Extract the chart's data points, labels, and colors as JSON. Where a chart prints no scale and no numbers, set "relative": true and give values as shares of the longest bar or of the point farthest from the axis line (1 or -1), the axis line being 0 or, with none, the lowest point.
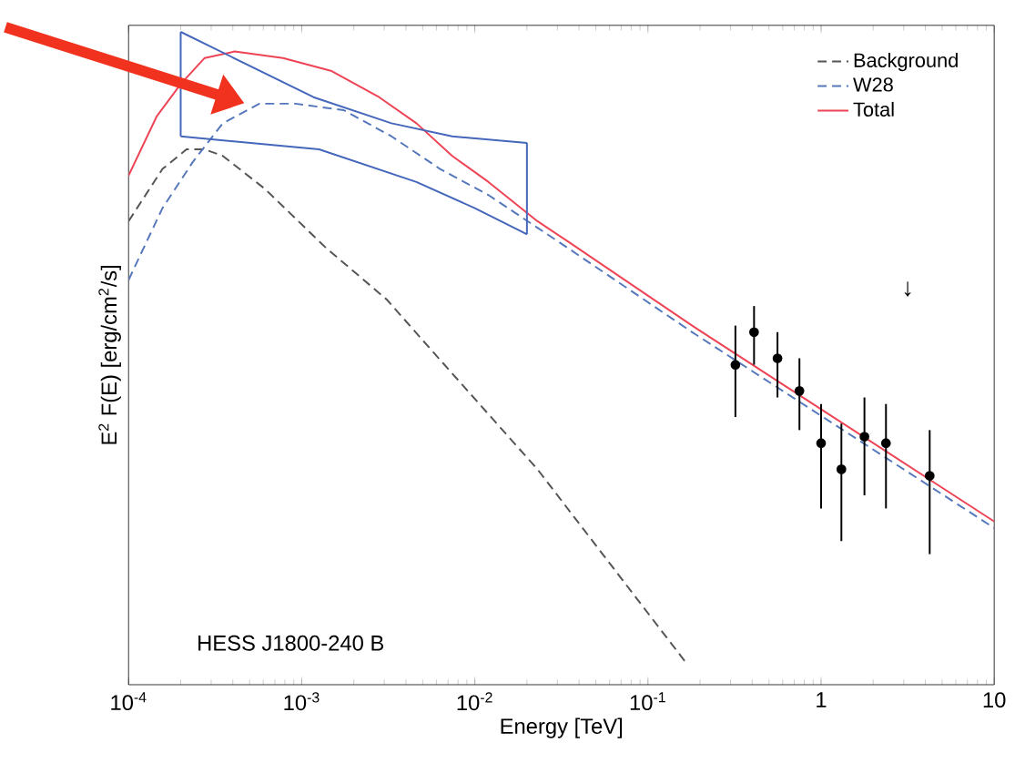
{
  "chart_data": {
    "type": "line",
    "xlabel": "Energy [TeV]",
    "ylabel": "E$^{2}$ F(E) [erg/cm$^{2}$/s]",
    "relative": true,
    "log": "x",
    "xlim": [
      0.0001,
      10
    ],
    "xticks": [
      {
        "value": 0.0001,
        "label": "10$^{-4}$"
      },
      {
        "value": 0.001,
        "label": "10$^{-3}$"
      },
      {
        "value": 0.01,
        "label": "10$^{-2}$"
      },
      {
        "value": 0.1,
        "label": "10$^{-1}$"
      },
      1,
      10
    ],
    "tick_labels": "x",
    "grid": false,
    "legend": "top right",
    "series": [
      {
        "name": "Background",
        "color": "#555555",
        "line_style": "dashed",
        "marker": "none",
        "x": [
          0.0001,
          0.000157,
          0.000216,
          0.000275,
          0.00035,
          0.00061,
          0.00137,
          0.0031,
          0.0053,
          0.023,
          0.17
        ],
        "values": [
          0.71,
          0.79,
          0.82,
          0.82,
          0.81,
          0.76,
          0.67,
          0.59,
          0.52,
          0.33,
          0.03
        ]
      },
      {
        "name": "W28",
        "color": "#5577bb",
        "line_style": "dashed",
        "marker": "none",
        "x": [
          0.0001,
          0.000157,
          0.000234,
          0.00035,
          0.00057,
          0.00092,
          0.00175,
          0.0033,
          0.0063,
          0.012,
          0.023,
          0.034,
          0.18,
          10
        ],
        "values": [
          0.62,
          0.73,
          0.8,
          0.86,
          0.89,
          0.89,
          0.88,
          0.84,
          0.79,
          0.75,
          0.7,
          0.67,
          0.54,
          0.24
        ]
      },
      {
        "name": "Total",
        "color": "#ee4455",
        "line_style": "solid",
        "marker": "none",
        "x": [
          0.0001,
          0.000145,
          0.0002,
          0.000275,
          0.00041,
          0.00078,
          0.00149,
          0.0028,
          0.0046,
          0.0074,
          0.012,
          0.023,
          0.034,
          0.18,
          10
        ],
        "values": [
          0.78,
          0.87,
          0.92,
          0.96,
          0.97,
          0.96,
          0.94,
          0.9,
          0.86,
          0.81,
          0.77,
          0.71,
          0.68,
          0.55,
          0.25
        ]
      },
      {
        "color": "#4466bb",
        "line_style": "solid",
        "marker": "none",
        "x": [
          0.0002,
          0.00117,
          0.0033,
          0.0074,
          0.02
        ],
        "values": [
          1.0,
          0.9,
          0.86,
          0.84,
          0.83
        ]
      },
      {
        "color": "#4466bb",
        "line_style": "solid",
        "marker": "none",
        "x": [
          0.0002,
          0.0002
        ],
        "values": [
          0.84,
          1.0
        ]
      },
      {
        "color": "#4466bb",
        "line_style": "solid",
        "marker": "none",
        "x": [
          0.02,
          0.02
        ],
        "values": [
          0.69,
          0.83
        ]
      },
      {
        "color": "#4466bb",
        "line_style": "solid",
        "marker": "none",
        "x": [
          0.0002,
          0.00126,
          0.0046,
          0.01,
          0.02
        ],
        "values": [
          0.84,
          0.82,
          0.77,
          0.73,
          0.69
        ]
      },
      {
        "type": "scatter",
        "color": "#000000",
        "marker": "circle",
        "x": [
          0.32,
          0.41,
          0.56,
          0.75,
          1.0,
          1.31,
          1.78,
          2.37,
          4.24
        ],
        "values": [
          0.49,
          0.54,
          0.5,
          0.45,
          0.37,
          0.33,
          0.38,
          0.37,
          0.32
        ]
      },
      {
        "color": "#000000",
        "line_style": "solid",
        "marker": "none",
        "x": [
          0.32,
          0.32
        ],
        "values": [
          0.41,
          0.55
        ]
      },
      {
        "color": "#000000",
        "line_style": "solid",
        "marker": "none",
        "x": [
          0.41,
          0.41
        ],
        "values": [
          0.49,
          0.58
        ]
      },
      {
        "color": "#000000",
        "line_style": "solid",
        "marker": "none",
        "x": [
          0.56,
          0.56
        ],
        "values": [
          0.44,
          0.54
        ]
      },
      {
        "color": "#000000",
        "line_style": "solid",
        "marker": "none",
        "x": [
          0.75,
          0.75
        ],
        "values": [
          0.39,
          0.5
        ]
      },
      {
        "color": "#000000",
        "line_style": "solid",
        "marker": "none",
        "x": [
          1.0,
          1.0
        ],
        "values": [
          0.27,
          0.43
        ]
      },
      {
        "color": "#000000",
        "line_style": "solid",
        "marker": "none",
        "x": [
          1.31,
          1.31
        ],
        "values": [
          0.22,
          0.4
        ]
      },
      {
        "color": "#000000",
        "line_style": "solid",
        "marker": "none",
        "x": [
          1.78,
          1.78
        ],
        "values": [
          0.29,
          0.44
        ]
      },
      {
        "color": "#000000",
        "line_style": "solid",
        "marker": "none",
        "x": [
          2.37,
          2.37
        ],
        "values": [
          0.27,
          0.43
        ]
      },
      {
        "color": "#000000",
        "line_style": "solid",
        "marker": "none",
        "x": [
          4.24,
          4.24
        ],
        "values": [
          0.2,
          0.39
        ]
      }
    ],
    "annotations": [
      "HESS J1800-240 B",
      "↓"
    ]
  }
}
